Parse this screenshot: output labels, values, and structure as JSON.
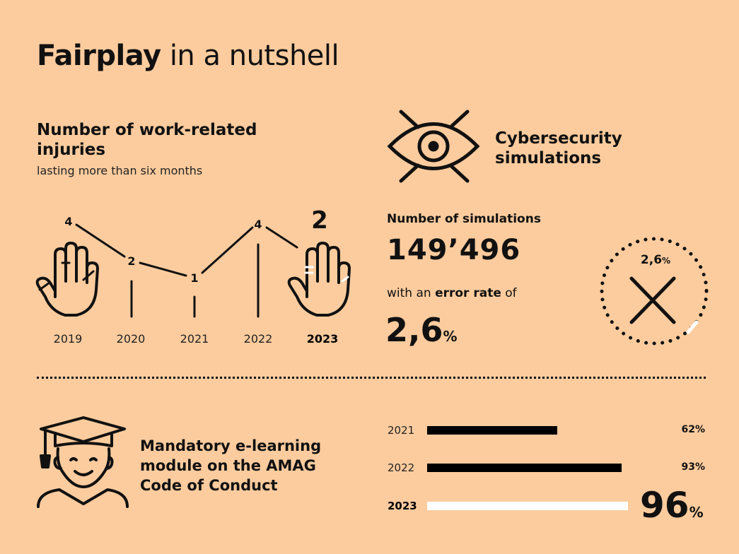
{
  "title": {
    "bold": "Fairplay",
    "rest": "in a nutshell"
  },
  "injuries": {
    "title": "Number of work-related injuries",
    "subtitle": "lasting more than six months",
    "years": [
      "2019",
      "2020",
      "2021",
      "2022",
      "2023"
    ],
    "values": [
      "4",
      "2",
      "1",
      "4",
      "2"
    ],
    "highlight_year": "2023"
  },
  "cyber": {
    "title": "Cybersecurity simulations",
    "sims_label": "Number of simulations",
    "sims_value": "149’496",
    "error_label_pre": "with an",
    "error_label_bold": "error rate",
    "error_label_post": "of",
    "error_value": "2,6",
    "error_unit": "%",
    "circle_value": "2,6",
    "circle_unit": "%",
    "icons": [
      "eye-crossed-icon",
      "x-mark-icon"
    ]
  },
  "elearning": {
    "title": "Mandatory e-learning module on the AMAG Code of Conduct",
    "icon": "graduate-icon",
    "bars": [
      {
        "year": "2021",
        "pct_label": "62%",
        "value": 0.62,
        "color": "#000000"
      },
      {
        "year": "2022",
        "pct_label": "93%",
        "value": 0.93,
        "color": "#000000"
      },
      {
        "year": "2023",
        "pct_label": "96",
        "unit": "%",
        "value": 0.96,
        "color": "#FFFFFF"
      }
    ]
  },
  "colors": {
    "background": "#FDCC9E",
    "ink": "#111111",
    "highlight": "#FFFFFF"
  }
}
